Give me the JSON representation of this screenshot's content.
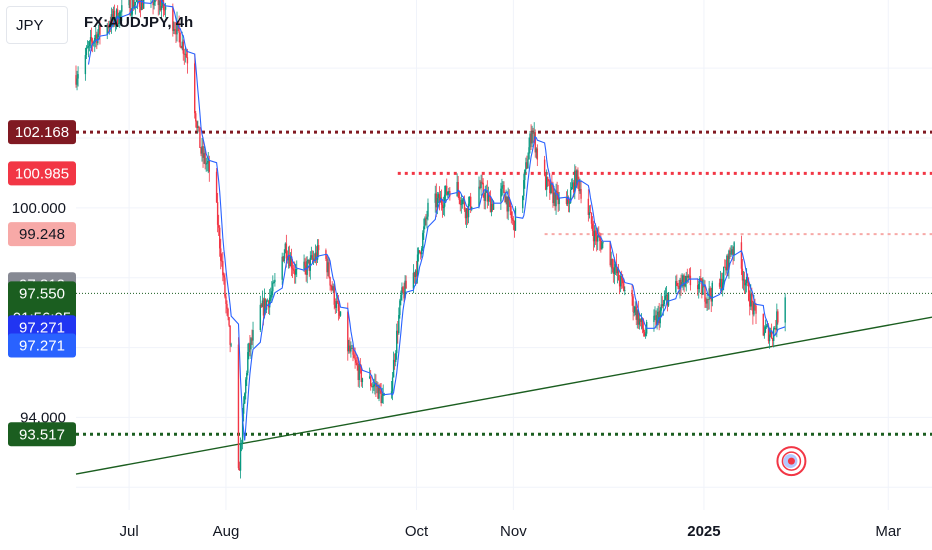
{
  "chart_data": {
    "type": "candlestick",
    "symbol": "FX:AUDJPY",
    "interval": "4h",
    "currency": "JPY",
    "x_range": [
      "2024-06-14",
      "2025-03-15"
    ],
    "y_range": [
      91.35,
      105.95
    ],
    "x_ticks": [
      {
        "label": "Jul",
        "date": "2024-07-01",
        "bold": false
      },
      {
        "label": "Aug",
        "date": "2024-08-01",
        "bold": false
      },
      {
        "label": "Oct",
        "date": "2024-10-01",
        "bold": false
      },
      {
        "label": "Nov",
        "date": "2024-11-01",
        "bold": false
      },
      {
        "label": "2025",
        "date": "2025-01-01",
        "bold": true
      },
      {
        "label": "Mar",
        "date": "2025-03-01",
        "bold": false
      }
    ],
    "y_ticks": [
      {
        "label": "100.000",
        "value": 100.0
      },
      {
        "label": "94.000",
        "value": 94.0
      }
    ],
    "price_path": [
      [
        "2024-06-14",
        103.8
      ],
      [
        "2024-06-20",
        104.9
      ],
      [
        "2024-06-26",
        105.4
      ],
      [
        "2024-07-03",
        105.9
      ],
      [
        "2024-07-10",
        105.95
      ],
      [
        "2024-07-16",
        105.2
      ],
      [
        "2024-07-20",
        104.2
      ],
      [
        "2024-07-24",
        101.6
      ],
      [
        "2024-07-28",
        100.8
      ],
      [
        "2024-08-01",
        97.2
      ],
      [
        "2024-08-03",
        95.6
      ],
      [
        "2024-08-05",
        92.3
      ],
      [
        "2024-08-08",
        95.8
      ],
      [
        "2024-08-12",
        97.0
      ],
      [
        "2024-08-16",
        97.6
      ],
      [
        "2024-08-20",
        98.9
      ],
      [
        "2024-08-24",
        98.0
      ],
      [
        "2024-08-28",
        98.4
      ],
      [
        "2024-09-01",
        98.9
      ],
      [
        "2024-09-05",
        97.3
      ],
      [
        "2024-09-09",
        96.0
      ],
      [
        "2024-09-13",
        95.2
      ],
      [
        "2024-09-18",
        94.9
      ],
      [
        "2024-09-22",
        94.2
      ],
      [
        "2024-09-26",
        97.4
      ],
      [
        "2024-10-01",
        98.3
      ],
      [
        "2024-10-05",
        100.1
      ],
      [
        "2024-10-09",
        100.2
      ],
      [
        "2024-10-13",
        100.8
      ],
      [
        "2024-10-17",
        99.9
      ],
      [
        "2024-10-21",
        100.6
      ],
      [
        "2024-10-25",
        100.1
      ],
      [
        "2024-10-29",
        100.5
      ],
      [
        "2024-11-01",
        99.5
      ],
      [
        "2024-11-04",
        100.5
      ],
      [
        "2024-11-07",
        102.3
      ],
      [
        "2024-11-10",
        100.9
      ],
      [
        "2024-11-14",
        100.3
      ],
      [
        "2024-11-18",
        100.0
      ],
      [
        "2024-11-21",
        100.9
      ],
      [
        "2024-11-24",
        100.2
      ],
      [
        "2024-11-27",
        99.2
      ],
      [
        "2024-12-01",
        98.8
      ],
      [
        "2024-12-05",
        97.9
      ],
      [
        "2024-12-09",
        97.3
      ],
      [
        "2024-12-13",
        96.4
      ],
      [
        "2024-12-17",
        96.8
      ],
      [
        "2024-12-21",
        97.6
      ],
      [
        "2024-12-25",
        97.8
      ],
      [
        "2024-12-29",
        97.9
      ],
      [
        "2025-01-02",
        97.5
      ],
      [
        "2025-01-06",
        97.7
      ],
      [
        "2025-01-10",
        98.9
      ],
      [
        "2025-01-14",
        98.0
      ],
      [
        "2025-01-17",
        97.0
      ],
      [
        "2025-01-20",
        96.5
      ],
      [
        "2025-01-23",
        96.4
      ],
      [
        "2025-01-27",
        97.6
      ]
    ],
    "overlays": {
      "horizontal_levels": [
        {
          "price": 102.168,
          "label": "102.168",
          "color": "#801922",
          "style": "dotted",
          "start": "2024-06-14"
        },
        {
          "price": 100.985,
          "label": "100.985",
          "color": "#f23645",
          "style": "dotted",
          "start": "2024-09-25"
        },
        {
          "price": 99.248,
          "label": "99.248",
          "color": "#f7a9a7",
          "style": "dotted",
          "start": "2024-11-11"
        },
        {
          "price": 93.517,
          "label": "93.517",
          "color": "#1b5e20",
          "style": "dotted",
          "start": "2024-06-14"
        },
        {
          "price": 97.55,
          "color": "#1b5e20",
          "style": "fine-dotted",
          "start": "2024-06-14"
        }
      ],
      "trendline": {
        "p1": [
          "2024-06-14",
          92.38
        ],
        "p2": [
          "2025-03-15",
          96.87
        ],
        "color": "#1b5e20"
      }
    },
    "price_labels": [
      {
        "label": "102.168",
        "value": 102.168,
        "bg": "#801922",
        "fg": "#ffffff"
      },
      {
        "label": "100.985",
        "value": 100.985,
        "bg": "#f23645",
        "fg": "#ffffff"
      },
      {
        "label": "99.248",
        "value": 99.248,
        "bg": "#f7a9a7",
        "fg": "#131722"
      },
      {
        "label": "97.812",
        "value": 97.812,
        "bg": "#868993",
        "fg": "#ffffff"
      },
      {
        "label": "97.550",
        "value": 97.55,
        "bg": "#1b5e20",
        "fg": "#ffffff",
        "sub": "01:56:05"
      },
      {
        "label": "97.271",
        "value": 96.58,
        "bg": "#2135f2",
        "fg": "#ffffff"
      },
      {
        "label": "97.271",
        "value": 96.06,
        "bg": "#2962ff",
        "fg": "#ffffff"
      },
      {
        "label": "93.517",
        "value": 93.517,
        "bg": "#1b5e20",
        "fg": "#ffffff"
      }
    ],
    "event_marker": {
      "date": "2025-01-29",
      "value": 92.75,
      "icon": "event-target-icon",
      "color": "#f23645"
    }
  }
}
